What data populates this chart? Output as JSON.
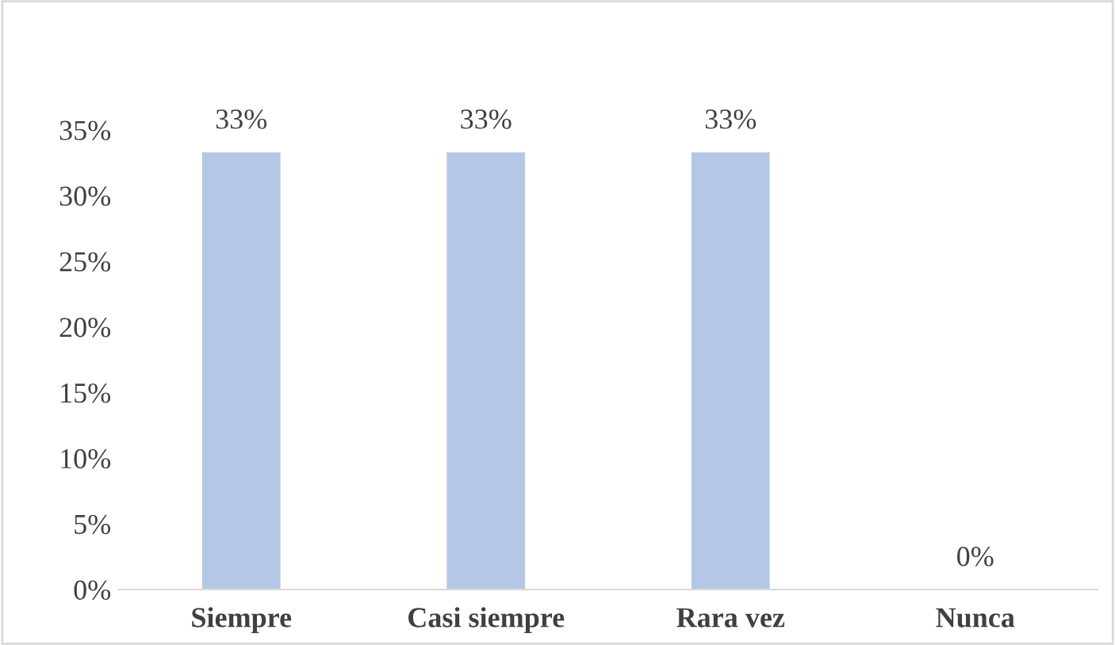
{
  "chart_data": {
    "type": "bar",
    "categories": [
      "Siempre",
      "Casi siempre",
      "Rara vez",
      "Nunca"
    ],
    "values": [
      33.3,
      33.3,
      33.3,
      0
    ],
    "value_labels": [
      "33%",
      "33%",
      "33%",
      "0%"
    ],
    "color": "#b4c7e7",
    "ylim": [
      0,
      35
    ],
    "yticks": [
      {
        "value": 0,
        "label": "0%"
      },
      {
        "value": 5,
        "label": "5%"
      },
      {
        "value": 10,
        "label": "10%"
      },
      {
        "value": 15,
        "label": "15%"
      },
      {
        "value": 20,
        "label": "20%"
      },
      {
        "value": 25,
        "label": "25%"
      },
      {
        "value": 30,
        "label": "30%"
      },
      {
        "value": 35,
        "label": "35%"
      }
    ],
    "grid": false,
    "legend": false
  }
}
